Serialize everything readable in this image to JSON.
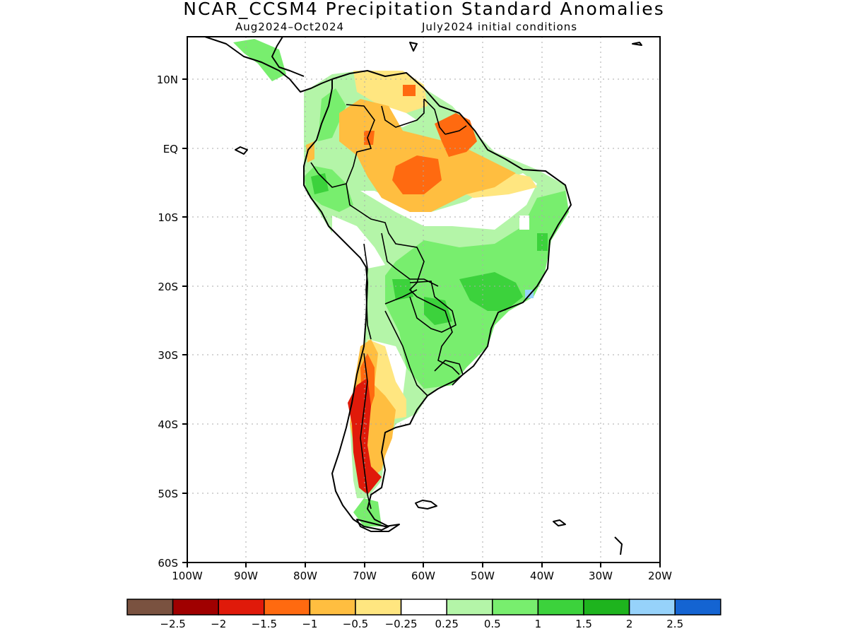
{
  "title": "NCAR_CCSM4 Precipitation Standard Anomalies",
  "subtitle_period": "Aug2024–Oct2024",
  "subtitle_init": "July2024 initial conditions",
  "lat_ticks": [
    "10N",
    "EQ",
    "10S",
    "20S",
    "30S",
    "40S",
    "50S",
    "60S"
  ],
  "lon_ticks": [
    "100W",
    "90W",
    "80W",
    "70W",
    "60W",
    "50W",
    "40W",
    "30W",
    "20W"
  ],
  "colorbar": {
    "colors": [
      "#7a5240",
      "#a00000",
      "#e01a0a",
      "#ff6a10",
      "#ffbe40",
      "#ffe680",
      "#ffffff",
      "#b4f5a8",
      "#78ee6e",
      "#3cd23c",
      "#1eb41e",
      "#96d2fa",
      "#1464d2"
    ],
    "labels": [
      "−2.5",
      "−2",
      "−1.5",
      "−1",
      "−0.5",
      "−0.25",
      "0.25",
      "0.5",
      "1",
      "1.5",
      "2",
      "2.5"
    ]
  }
}
